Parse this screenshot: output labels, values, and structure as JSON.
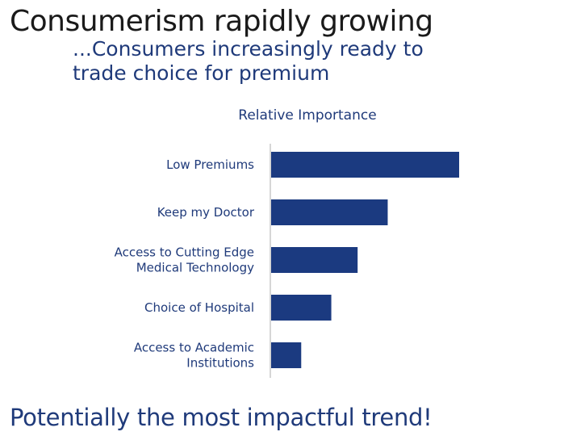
{
  "slide": {
    "title": "Consumerism rapidly growing",
    "subtitle_lines": [
      "...Consumers increasingly ready to",
      "trade choice for premium"
    ],
    "footer": "Potentially the most impactful trend!"
  },
  "colors": {
    "bar": "#1b3a80",
    "text": "#1f3a7a",
    "axis": "#c8c8c8"
  },
  "chart_data": {
    "type": "bar",
    "orientation": "horizontal",
    "title": "Relative Importance",
    "categories": [
      [
        "Low Premiums"
      ],
      [
        "Keep my Doctor"
      ],
      [
        "Access to Cutting Edge",
        "Medical Technology"
      ],
      [
        "Choice of Hospital"
      ],
      [
        "Access to Academic",
        "Institutions"
      ]
    ],
    "values": [
      100,
      62,
      46,
      32,
      16
    ],
    "xlim": [
      0,
      100
    ],
    "xlabel": "",
    "ylabel": "",
    "grid": false,
    "legend": "none"
  }
}
